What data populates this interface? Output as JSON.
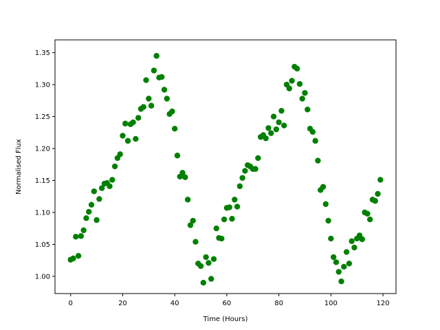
{
  "chart_data": {
    "type": "scatter",
    "title": "",
    "xlabel": "Time (Hours)",
    "ylabel": "Normalised Flux",
    "xlim": [
      -6,
      125
    ],
    "ylim": [
      0.973,
      1.37
    ],
    "xticks": [
      0,
      20,
      40,
      60,
      80,
      100,
      120
    ],
    "yticks": [
      1.0,
      1.05,
      1.1,
      1.15,
      1.2,
      1.25,
      1.3,
      1.35
    ],
    "xtick_labels": [
      "0",
      "20",
      "40",
      "60",
      "80",
      "100",
      "120"
    ],
    "ytick_labels": [
      "1.00",
      "1.05",
      "1.10",
      "1.15",
      "1.20",
      "1.25",
      "1.30",
      "1.35"
    ],
    "grid": false,
    "color": "#008000",
    "x": [
      0,
      1,
      2,
      3,
      4,
      5,
      6,
      7,
      8,
      9,
      10,
      11,
      12,
      13,
      14,
      15,
      16,
      17,
      18,
      19,
      20,
      21,
      22,
      23,
      24,
      25,
      26,
      27,
      28,
      29,
      30,
      31,
      32,
      33,
      34,
      35,
      36,
      37,
      38,
      39,
      40,
      41,
      42,
      43,
      44,
      45,
      46,
      47,
      48,
      49,
      50,
      51,
      52,
      53,
      54,
      55,
      56,
      57,
      58,
      59,
      60,
      61,
      62,
      63,
      64,
      65,
      66,
      67,
      68,
      69,
      70,
      71,
      72,
      73,
      74,
      75,
      76,
      77,
      78,
      79,
      80,
      81,
      82,
      83,
      84,
      85,
      86,
      87,
      88,
      89,
      90,
      91,
      92,
      93,
      94,
      95,
      96,
      97,
      98,
      99,
      100,
      101,
      102,
      103,
      104,
      105,
      106,
      107,
      108,
      109,
      110,
      111,
      112,
      113,
      114,
      115,
      116,
      117,
      118,
      119
    ],
    "y": [
      1.026,
      1.028,
      1.062,
      1.032,
      1.063,
      1.072,
      1.091,
      1.101,
      1.112,
      1.133,
      1.088,
      1.121,
      1.138,
      1.145,
      1.146,
      1.141,
      1.151,
      1.172,
      1.185,
      1.191,
      1.22,
      1.239,
      1.212,
      1.238,
      1.241,
      1.215,
      1.248,
      1.262,
      1.265,
      1.307,
      1.278,
      1.267,
      1.322,
      1.345,
      1.311,
      1.312,
      1.292,
      1.278,
      1.254,
      1.258,
      1.231,
      1.189,
      1.156,
      1.162,
      1.155,
      1.12,
      1.08,
      1.087,
      1.054,
      1.02,
      1.016,
      0.99,
      1.03,
      1.021,
      0.996,
      1.027,
      1.075,
      1.06,
      1.059,
      1.089,
      1.107,
      1.108,
      1.09,
      1.12,
      1.109,
      1.141,
      1.154,
      1.165,
      1.174,
      1.172,
      1.168,
      1.168,
      1.185,
      1.218,
      1.221,
      1.216,
      1.232,
      1.224,
      1.25,
      1.23,
      1.241,
      1.259,
      1.236,
      1.3,
      1.294,
      1.306,
      1.328,
      1.325,
      1.301,
      1.278,
      1.287,
      1.261,
      1.231,
      1.226,
      1.212,
      1.181,
      1.135,
      1.14,
      1.113,
      1.087,
      1.059,
      1.03,
      1.022,
      1.007,
      0.992,
      1.015,
      1.038,
      1.02,
      1.055,
      1.045,
      1.059,
      1.064,
      1.058,
      1.1,
      1.098,
      1.089,
      1.12,
      1.118,
      1.129,
      1.151
    ]
  }
}
